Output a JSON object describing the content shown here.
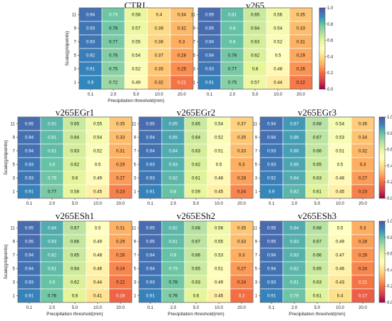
{
  "chart_data": [
    {
      "type": "heatmap",
      "title": "CTRL",
      "xlabel": "Precipitation threshold(mm)",
      "ylabel": "Scale(gridpoints)",
      "x": [
        "0.1",
        "2.0",
        "5.0",
        "10.0",
        "20.0"
      ],
      "y": [
        "11",
        "9",
        "7",
        "5",
        "3",
        "1"
      ],
      "values": [
        [
          0.94,
          0.79,
          0.58,
          0.4,
          0.34
        ],
        [
          0.93,
          0.78,
          0.57,
          0.39,
          0.32
        ],
        [
          0.93,
          0.77,
          0.55,
          0.38,
          0.3
        ],
        [
          0.92,
          0.76,
          0.54,
          0.37,
          0.28
        ],
        [
          0.91,
          0.75,
          0.52,
          0.35,
          0.25
        ],
        [
          0.9,
          0.72,
          0.49,
          0.32,
          0.21
        ]
      ]
    },
    {
      "type": "heatmap",
      "title": "v265",
      "xlabel": "",
      "ylabel": "",
      "x": [
        "0.1",
        "2.0",
        "5.0",
        "10.0",
        "20.0"
      ],
      "y": [
        "11",
        "9",
        "7",
        "5",
        "3",
        "1"
      ],
      "values": [
        [
          0.95,
          0.81,
          0.65,
          0.56,
          0.35
        ],
        [
          0.95,
          0.8,
          0.64,
          0.54,
          0.33
        ],
        [
          0.94,
          0.8,
          0.63,
          0.52,
          0.31
        ],
        [
          0.94,
          0.78,
          0.62,
          0.5,
          0.29
        ],
        [
          0.93,
          0.77,
          0.6,
          0.48,
          0.26
        ],
        [
          0.91,
          0.75,
          0.57,
          0.44,
          0.22
        ]
      ]
    },
    {
      "type": "heatmap",
      "title": "v265EGr1",
      "xlabel": "",
      "ylabel": "Scale(gridpoints)",
      "x": [
        "0.1",
        "2.0",
        "5.0",
        "10.0",
        "20.0"
      ],
      "y": [
        "11",
        "9",
        "7",
        "5",
        "3",
        "1"
      ],
      "values": [
        [
          0.95,
          0.82,
          0.65,
          0.55,
          0.35
        ],
        [
          0.94,
          0.81,
          0.64,
          0.54,
          0.33
        ],
        [
          0.94,
          0.81,
          0.63,
          0.52,
          0.31
        ],
        [
          0.93,
          0.8,
          0.62,
          0.5,
          0.29
        ],
        [
          0.93,
          0.79,
          0.6,
          0.49,
          0.27
        ],
        [
          0.91,
          0.77,
          0.58,
          0.45,
          0.23
        ]
      ]
    },
    {
      "type": "heatmap",
      "title": "v265EGr2",
      "xlabel": "",
      "ylabel": "",
      "x": [
        "0.1",
        "2.0",
        "5.0",
        "10.0",
        "20.0"
      ],
      "y": [
        "11",
        "9",
        "7",
        "5",
        "3",
        "1"
      ],
      "values": [
        [
          0.95,
          0.85,
          0.65,
          0.54,
          0.37
        ],
        [
          0.94,
          0.85,
          0.64,
          0.52,
          0.35
        ],
        [
          0.94,
          0.84,
          0.63,
          0.51,
          0.33
        ],
        [
          0.93,
          0.83,
          0.62,
          0.5,
          0.3
        ],
        [
          0.93,
          0.82,
          0.61,
          0.48,
          0.28
        ],
        [
          0.91,
          0.8,
          0.59,
          0.45,
          0.24
        ]
      ]
    },
    {
      "type": "heatmap",
      "title": "v265EGr3",
      "xlabel": "",
      "ylabel": "",
      "x": [
        "0.1",
        "2.0",
        "5.0",
        "10.0",
        "20.0"
      ],
      "y": [
        "11",
        "9",
        "7",
        "5",
        "3",
        "1"
      ],
      "values": [
        [
          0.94,
          0.87,
          0.68,
          0.54,
          0.36
        ],
        [
          0.94,
          0.86,
          0.67,
          0.53,
          0.34
        ],
        [
          0.93,
          0.86,
          0.66,
          0.51,
          0.32
        ],
        [
          0.93,
          0.85,
          0.65,
          0.5,
          0.3
        ],
        [
          0.92,
          0.84,
          0.63,
          0.48,
          0.27
        ],
        [
          0.9,
          0.82,
          0.61,
          0.45,
          0.23
        ]
      ]
    },
    {
      "type": "heatmap",
      "title": "v265ESh1",
      "xlabel": "Precipitation threshold(mm)",
      "ylabel": "Scale(gridpoints)",
      "x": [
        "0.1",
        "2.0",
        "5.0",
        "10.0",
        "20.0"
      ],
      "y": [
        "11",
        "9",
        "7",
        "5",
        "3",
        "1"
      ],
      "values": [
        [
          0.95,
          0.84,
          0.67,
          0.5,
          0.31
        ],
        [
          0.95,
          0.83,
          0.66,
          0.49,
          0.29
        ],
        [
          0.94,
          0.82,
          0.65,
          0.48,
          0.26
        ],
        [
          0.94,
          0.81,
          0.64,
          0.46,
          0.24
        ],
        [
          0.93,
          0.8,
          0.62,
          0.44,
          0.22
        ],
        [
          0.91,
          0.78,
          0.6,
          0.41,
          0.18
        ]
      ]
    },
    {
      "type": "heatmap",
      "title": "v265ESh2",
      "xlabel": "Precipitation threshold(mm)",
      "ylabel": "",
      "x": [
        "0.1",
        "2.0",
        "5.0",
        "10.0",
        "20.0"
      ],
      "y": [
        "11",
        "9",
        "7",
        "5",
        "3",
        "1"
      ],
      "values": [
        [
          0.95,
          0.82,
          0.68,
          0.56,
          0.35
        ],
        [
          0.95,
          0.81,
          0.67,
          0.55,
          0.33
        ],
        [
          0.94,
          0.8,
          0.66,
          0.53,
          0.3
        ],
        [
          0.94,
          0.79,
          0.65,
          0.51,
          0.27
        ],
        [
          0.93,
          0.78,
          0.63,
          0.49,
          0.24
        ],
        [
          0.91,
          0.76,
          0.6,
          0.45,
          0.2
        ]
      ]
    },
    {
      "type": "heatmap",
      "title": "v265ESh3",
      "xlabel": "Precipitation threshold(mm)",
      "ylabel": "",
      "x": [
        "0.1",
        "2.0",
        "5.0",
        "10.0",
        "20.0"
      ],
      "y": [
        "11",
        "9",
        "7",
        "5",
        "3",
        "1"
      ],
      "values": [
        [
          0.95,
          0.84,
          0.68,
          0.5,
          0.3
        ],
        [
          0.95,
          0.83,
          0.67,
          0.49,
          0.28
        ],
        [
          0.94,
          0.83,
          0.66,
          0.47,
          0.26
        ],
        [
          0.94,
          0.82,
          0.65,
          0.46,
          0.24
        ],
        [
          0.93,
          0.81,
          0.63,
          0.43,
          0.21
        ],
        [
          0.91,
          0.79,
          0.61,
          0.4,
          0.17
        ]
      ]
    }
  ],
  "colorbar": {
    "ticks": [
      "0.0",
      "0.2",
      "0.4",
      "0.6",
      "0.8",
      "1.0"
    ],
    "range": [
      0,
      1
    ],
    "colormap": [
      "#9e0142",
      "#d53e4f",
      "#f46d43",
      "#fdae61",
      "#fee08b",
      "#ffffbf",
      "#e6f598",
      "#abdda4",
      "#66c2a5",
      "#3288bd",
      "#5e4fa2"
    ]
  }
}
